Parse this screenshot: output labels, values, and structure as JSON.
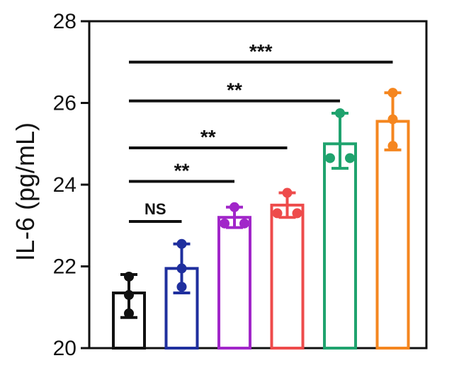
{
  "chart_data": {
    "type": "bar",
    "title": "",
    "xlabel": "",
    "ylabel": "IL-6 (pg/mL)",
    "ylim": [
      20,
      28
    ],
    "yticks": [
      "20",
      "22",
      "24",
      "26",
      "28"
    ],
    "grid": false,
    "bars": [
      {
        "mean": 21.35,
        "err_low": 20.75,
        "err_high": 21.8,
        "points": [
          21.75,
          21.3,
          20.85
        ],
        "color": "#111111"
      },
      {
        "mean": 21.95,
        "err_low": 21.35,
        "err_high": 22.55,
        "points": [
          22.55,
          21.95,
          21.5
        ],
        "color": "#1f2f9e"
      },
      {
        "mean": 23.2,
        "err_low": 22.95,
        "err_high": 23.45,
        "points": [
          23.45,
          23.05,
          23.05
        ],
        "color": "#a126c9"
      },
      {
        "mean": 23.5,
        "err_low": 23.2,
        "err_high": 23.8,
        "points": [
          23.8,
          23.3,
          23.3
        ],
        "color": "#ee4b4b"
      },
      {
        "mean": 25.0,
        "err_low": 24.4,
        "err_high": 25.75,
        "points": [
          25.75,
          24.65,
          24.65
        ],
        "color": "#1fa36e"
      },
      {
        "mean": 25.55,
        "err_low": 24.85,
        "err_high": 26.25,
        "points": [
          26.25,
          25.6,
          24.95
        ],
        "color": "#f5861f"
      }
    ],
    "comparisons": [
      {
        "from": 0,
        "to": 1,
        "label": "NS",
        "y": 23.1
      },
      {
        "from": 0,
        "to": 2,
        "label": "**",
        "y": 24.08
      },
      {
        "from": 0,
        "to": 3,
        "label": "**",
        "y": 24.9
      },
      {
        "from": 0,
        "to": 4,
        "label": "**",
        "y": 26.05
      },
      {
        "from": 0,
        "to": 5,
        "label": "***",
        "y": 27.0
      }
    ]
  }
}
